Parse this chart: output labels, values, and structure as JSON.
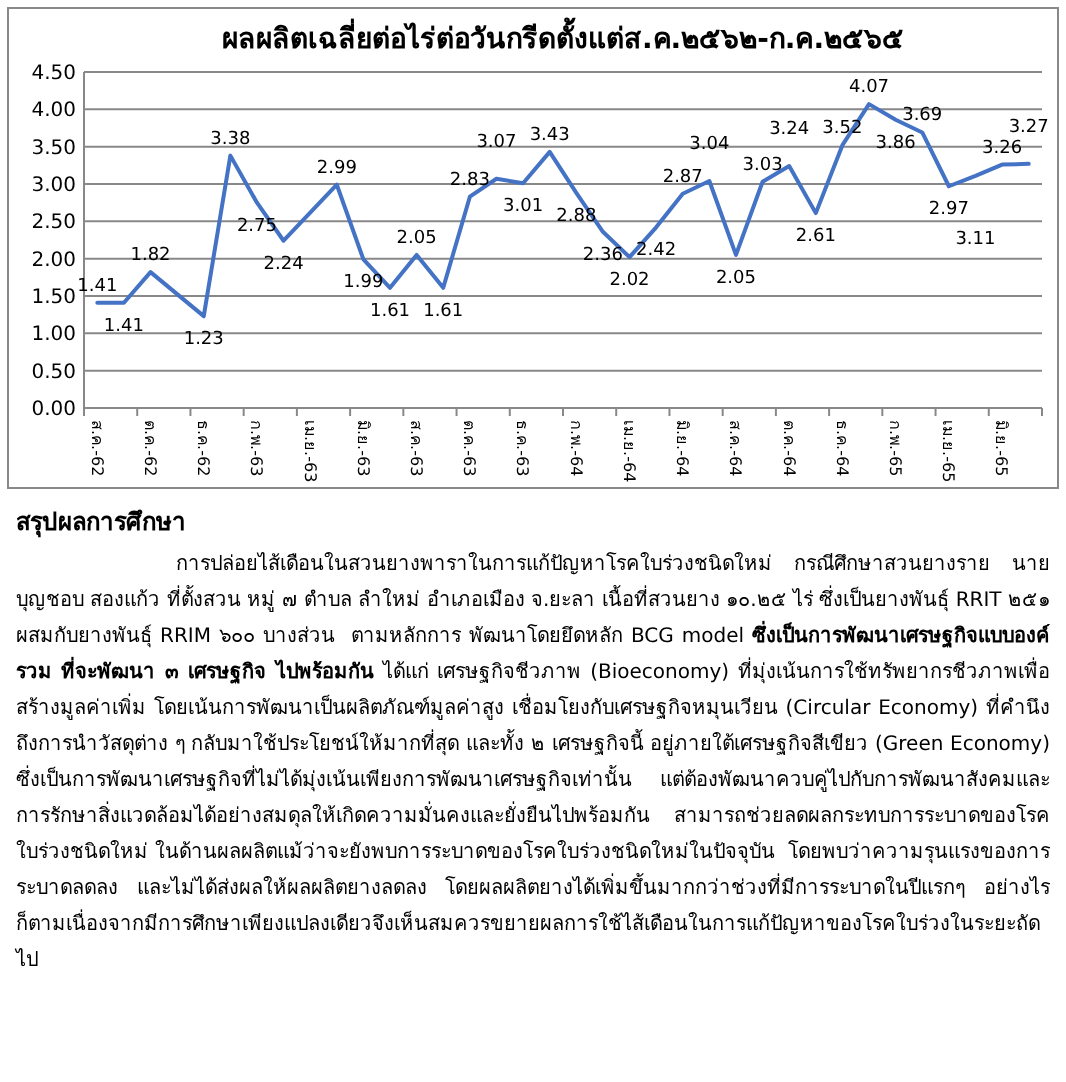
{
  "chart_data": {
    "type": "line",
    "title": "ผลผลิตเฉลี่ยต่อไร่ต่อวันกรีดตั้งแต่ส.ค.๒๕๖๒-ก.ค.๒๕๖๕",
    "categories": [
      "ส.ค.-62",
      null,
      "ต.ค.-62",
      null,
      "ธ.ค.-62",
      null,
      "ก.พ.-63",
      null,
      "เม.ย.-63",
      null,
      "มิ.ย.-63",
      null,
      "ส.ค.-63",
      null,
      "ต.ค.-63",
      null,
      "ธ.ค.-63",
      null,
      "ก.พ.-64",
      null,
      "เม.ย.-64",
      null,
      "มิ.ย.-64",
      null,
      "ส.ค.-64",
      null,
      "ต.ค.-64",
      null,
      "ธ.ค.-64",
      null,
      "ก.พ.-65",
      null,
      "เม.ย.-65",
      null,
      "มิ.ย.-65",
      null
    ],
    "series": [
      {
        "color": "#4472c4",
        "values": [
          1.41,
          1.41,
          1.82,
          null,
          1.23,
          3.38,
          2.75,
          2.24,
          null,
          2.99,
          1.99,
          1.61,
          2.05,
          1.61,
          2.83,
          3.07,
          3.01,
          3.43,
          2.88,
          2.36,
          2.02,
          2.42,
          2.87,
          3.04,
          2.05,
          3.03,
          3.24,
          2.61,
          3.52,
          4.07,
          3.86,
          3.69,
          2.97,
          3.11,
          3.26,
          3.27
        ]
      }
    ],
    "ylim": [
      0,
      4.5
    ],
    "yticks": [
      {
        "value": 0,
        "label": "0.00"
      },
      {
        "value": 0.5,
        "label": "0.50"
      },
      {
        "value": 1,
        "label": "1.00"
      },
      {
        "value": 1.5,
        "label": "1.50"
      },
      {
        "value": 2,
        "label": "2.00"
      },
      {
        "value": 2.5,
        "label": "2.50"
      },
      {
        "value": 3,
        "label": "3.00"
      },
      {
        "value": 3.5,
        "label": "3.50"
      },
      {
        "value": 4,
        "label": "4.00"
      },
      {
        "value": 4.5,
        "label": "4.50"
      }
    ],
    "grid": "y",
    "data_labels": true,
    "line_style": "solid",
    "annotations": [
      "สรุปผลการศึกษา",
      "การปล่อยไส้เดือนในสวนยางพาราในการแก้ปัญหาโรคใบร่วงชนิดใหม่ กรณีศึกษาสวนยางราย นาย บุญชอบ สองแก้ว ที่ตั้งสวน หมู่ ๗ ตำบล ลำใหม่ อำเภอเมือง จ.ยะลา เนื้อที่สวนยาง ๑๐.๒๕ ไร่ ซึ่งเป็นยางพันธุ์ RRIT ๒๕๑ ผสมกับยางพันธุ์ RRIM ๖๐๐ บางส่วน  ตามหลักการ พัฒนาโดยยึดหลัก BCG model ",
      "ซึ่งเป็นการพัฒนาเศรษฐกิจแบบองค์รวม ที่จะพัฒนา ๓ เศรษฐกิจ ไปพร้อมกัน",
      " ได้แก่ เศรษฐกิจชีวภาพ (Bioeconomy) ที่มุ่งเน้นการใช้ทรัพยากรชีวภาพเพื่อสร้างมูลค่าเพิ่ม โดยเน้นการพัฒนาเป็นผลิตภัณฑ์มูลค่าสูง เชื่อมโยงกับเศรษฐกิจหมุนเวียน (Circular Economy) ที่คำนึงถึงการนำวัสดุต่าง ๆ กลับมาใช้ประโยชน์ให้มากที่สุด และทั้ง ๒ เศรษฐกิจนี้ อยู่ภายใต้เศรษฐกิจสีเขียว (Green Economy) ซึ่งเป็นการพัฒนาเศรษฐกิจที่ไม่ได้มุ่งเน้นเพียงการพัฒนาเศรษฐกิจเท่านั้น แต่ต้องพัฒนาควบคู่ไปกับการพัฒนาสังคมและการรักษาสิ่งแวดล้อมได้อย่างสมดุลให้เกิดความมั่นคงและยั่งยืนไปพร้อมกัน สามารถช่วยลดผลกระทบการระบาดของโรคใบร่วงชนิดใหม่ ในด้านผลผลิตแม้ว่าจะยังพบการระบาดของโรคใบร่วงชนิดใหม่ในปัจจุบัน  โดยพบว่าความรุนแรงของการระบาดลดลง และไม่ได้ส่งผลให้ผลผลิตยางลดลง โดยผลผลิตยางได้เพิ่มขึ้นมากกว่าช่วงที่มีการระบาดในปีแรกๆ อย่างไรก็ตามเนื่องจากมีการศึกษาเพียงแปลงเดียวจึงเห็นสมควรขยายผลการใช้ไส้เดือนในการแก้ปัญหาของโรคใบร่วงในระยะถัดไป"
    ]
  }
}
